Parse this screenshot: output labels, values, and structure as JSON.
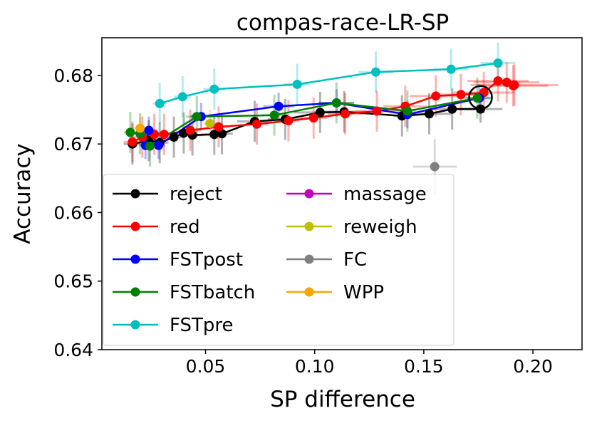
{
  "chart_data": {
    "type": "line",
    "title": "compas-race-LR-SP",
    "xlabel": "SP difference",
    "ylabel": "Accuracy",
    "xlim": [
      0.0025,
      0.2225
    ],
    "ylim": [
      0.64,
      0.6855
    ],
    "xticks": [
      0.05,
      0.1,
      0.15,
      0.2
    ],
    "xtick_labels": [
      "0.05",
      "0.10",
      "0.15",
      "0.20"
    ],
    "yticks": [
      0.64,
      0.65,
      0.66,
      0.67,
      0.68
    ],
    "ytick_labels": [
      "0.64",
      "0.65",
      "0.66",
      "0.67",
      "0.68"
    ],
    "legend_position": "lower-left",
    "legend_columns": 2,
    "series": [
      {
        "name": "reject",
        "color": "#000000",
        "connected": true,
        "x": [
          0.0165,
          0.024,
          0.029,
          0.0355,
          0.04,
          0.044,
          0.054,
          0.0575,
          0.0725,
          0.0865,
          0.1025,
          0.1135,
          0.14,
          0.1525,
          0.163,
          0.176
        ],
        "y": [
          0.67,
          0.6705,
          0.6702,
          0.671,
          0.6716,
          0.6713,
          0.6714,
          0.6715,
          0.6733,
          0.6736,
          0.6746,
          0.6747,
          0.6741,
          0.6744,
          0.6751,
          0.6751
        ],
        "xerr": [
          0.004,
          0.004,
          0.004,
          0.005,
          0.005,
          0.005,
          0.006,
          0.005,
          0.008,
          0.008,
          0.012,
          0.01,
          0.004,
          0.01,
          0.01,
          0.01
        ],
        "yerr": [
          0.003,
          0.003,
          0.003,
          0.003,
          0.003,
          0.003,
          0.003,
          0.003,
          0.003,
          0.003,
          0.003,
          0.003,
          0.003,
          0.003,
          0.003,
          0.002
        ]
      },
      {
        "name": "red",
        "color": "#ff0000",
        "connected": true,
        "x": [
          0.0165,
          0.021,
          0.0265,
          0.031,
          0.043,
          0.056,
          0.0735,
          0.088,
          0.0995,
          0.114,
          0.1285,
          0.1415,
          0.1555,
          0.167,
          0.1775,
          0.184,
          0.188,
          0.1915,
          0.191
        ],
        "y": [
          0.6703,
          0.671,
          0.6714,
          0.6714,
          0.672,
          0.6725,
          0.6729,
          0.6734,
          0.6738,
          0.6744,
          0.6748,
          0.6755,
          0.677,
          0.6772,
          0.6775,
          0.6792,
          0.679,
          0.6786,
          0.6785
        ],
        "xerr": [
          0.004,
          0.004,
          0.004,
          0.005,
          0.005,
          0.005,
          0.005,
          0.005,
          0.006,
          0.008,
          0.01,
          0.01,
          0.012,
          0.012,
          0.014,
          0.014,
          0.015,
          0.02,
          0.016
        ],
        "yerr": [
          0.003,
          0.003,
          0.003,
          0.003,
          0.003,
          0.003,
          0.003,
          0.003,
          0.003,
          0.003,
          0.003,
          0.003,
          0.003,
          0.003,
          0.003,
          0.003,
          0.003,
          0.003,
          0.003
        ]
      },
      {
        "name": "FSTpost",
        "color": "#0000ff",
        "connected": true,
        "x": [
          0.0225,
          0.024,
          0.0285,
          0.048,
          0.0835,
          0.11,
          0.1425,
          0.1755
        ],
        "y": [
          0.6698,
          0.672,
          0.6698,
          0.674,
          0.6755,
          0.676,
          0.6743,
          0.6767
        ],
        "xerr": [
          0.003,
          0.004,
          0.003,
          0.005,
          0.007,
          0.008,
          0.004,
          0.006
        ],
        "yerr": [
          0.002,
          0.002,
          0.002,
          0.002,
          0.002,
          0.002,
          0.002,
          0.002
        ]
      },
      {
        "name": "FSTbatch",
        "color": "#008000",
        "connected": true,
        "x": [
          0.0155,
          0.02,
          0.0245,
          0.046,
          0.0815,
          0.11,
          0.1425,
          0.1745
        ],
        "y": [
          0.6717,
          0.6715,
          0.6697,
          0.674,
          0.6742,
          0.676,
          0.6748,
          0.6767
        ],
        "xerr": [
          0.003,
          0.003,
          0.003,
          0.005,
          0.006,
          0.008,
          0.004,
          0.006
        ],
        "yerr": [
          0.003,
          0.003,
          0.003,
          0.003,
          0.003,
          0.003,
          0.003,
          0.003
        ]
      },
      {
        "name": "FSTpre",
        "color": "#00bfbf",
        "connected": true,
        "x": [
          0.029,
          0.0395,
          0.054,
          0.092,
          0.128,
          0.1625,
          0.184
        ],
        "y": [
          0.6759,
          0.6769,
          0.678,
          0.6787,
          0.6805,
          0.6809,
          0.6818
        ],
        "xerr": [
          0.003,
          0.004,
          0.005,
          0.006,
          0.008,
          0.008,
          0.008
        ],
        "yerr": [
          0.003,
          0.003,
          0.003,
          0.003,
          0.003,
          0.003,
          0.003
        ]
      },
      {
        "name": "massage",
        "color": "#bf00bf",
        "connected": false,
        "x": [],
        "y": [],
        "xerr": [],
        "yerr": []
      },
      {
        "name": "reweigh",
        "color": "#bfbf00",
        "connected": false,
        "x": [
          0.052
        ],
        "y": [
          0.673
        ],
        "xerr": [
          0.003
        ],
        "yerr": [
          0.002
        ]
      },
      {
        "name": "FC",
        "color": "#808080",
        "connected": false,
        "x": [
          0.155
        ],
        "y": [
          0.6667
        ],
        "xerr": [
          0.01
        ],
        "yerr": [
          0.004
        ]
      },
      {
        "name": "WPP",
        "color": "#ffa500",
        "connected": false,
        "x": [
          0.02
        ],
        "y": [
          0.6723
        ],
        "xerr": [
          0.003
        ],
        "yerr": [
          0.002
        ]
      }
    ],
    "highlight": {
      "x": 0.176,
      "y": 0.6768,
      "shape": "open-circle"
    }
  }
}
